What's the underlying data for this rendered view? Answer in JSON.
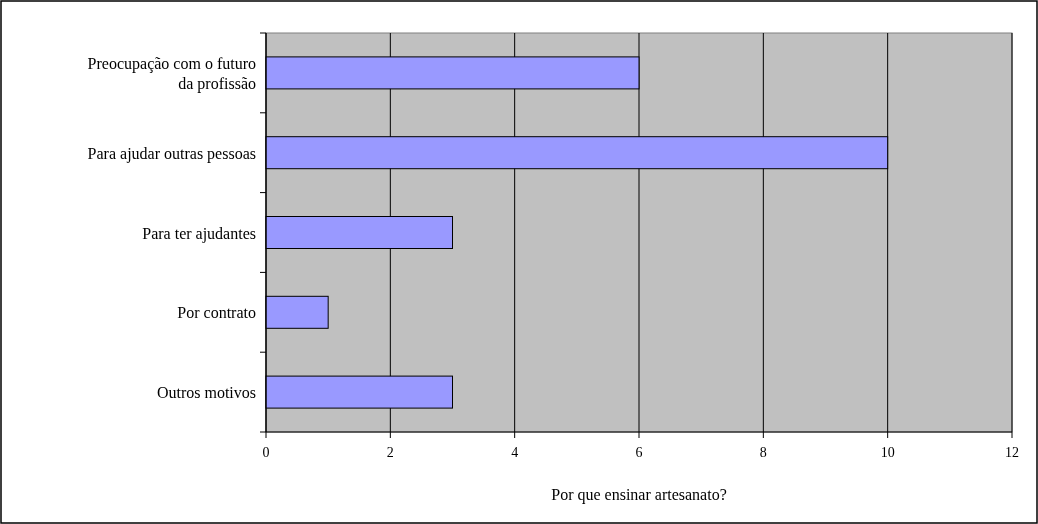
{
  "chart_data": {
    "type": "bar",
    "orientation": "horizontal",
    "xlabel": "Por que ensinar artesanato?",
    "categories": [
      "Preocupação com o futuro da profissão",
      "Para ajudar outras pessoas",
      "Para ter ajudantes",
      "Por contrato",
      "Outros motivos"
    ],
    "values": [
      6,
      10,
      3,
      1,
      3
    ],
    "color": "#9999ff",
    "xlim": [
      0,
      12
    ],
    "xticks": [
      0,
      2,
      4,
      6,
      8,
      10,
      12
    ],
    "grid": "x"
  }
}
